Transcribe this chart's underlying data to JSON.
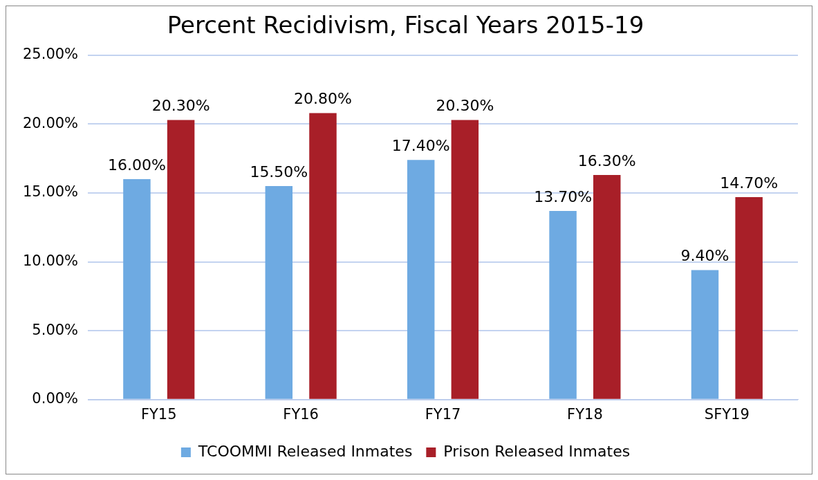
{
  "chart_data": {
    "type": "bar",
    "title": "Percent Recidivism, Fiscal Years 2015-19",
    "categories": [
      "FY15",
      "FY16",
      "FY17",
      "FY18",
      "SFY19"
    ],
    "series": [
      {
        "name": "TCOOMMI Released Inmates",
        "color": "#6eaae2",
        "values": [
          16.0,
          15.5,
          17.4,
          13.7,
          9.4
        ],
        "value_labels": [
          "16.00%",
          "15.50%",
          "17.40%",
          "13.70%",
          "9.40%"
        ]
      },
      {
        "name": "Prison Released Inmates",
        "color": "#a81f28",
        "values": [
          20.3,
          20.8,
          20.3,
          16.3,
          14.7
        ],
        "value_labels": [
          "20.30%",
          "20.80%",
          "20.30%",
          "16.30%",
          "14.70%"
        ]
      }
    ],
    "ylim": [
      0,
      25
    ],
    "yticks": [
      {
        "value": 0,
        "label": "0.00%"
      },
      {
        "value": 5,
        "label": "5.00%"
      },
      {
        "value": 10,
        "label": "10.00%"
      },
      {
        "value": 15,
        "label": "15.00%"
      },
      {
        "value": 20,
        "label": "20.00%"
      },
      {
        "value": 25,
        "label": "25.00%"
      }
    ],
    "grid": "y",
    "legend": "bottom"
  }
}
